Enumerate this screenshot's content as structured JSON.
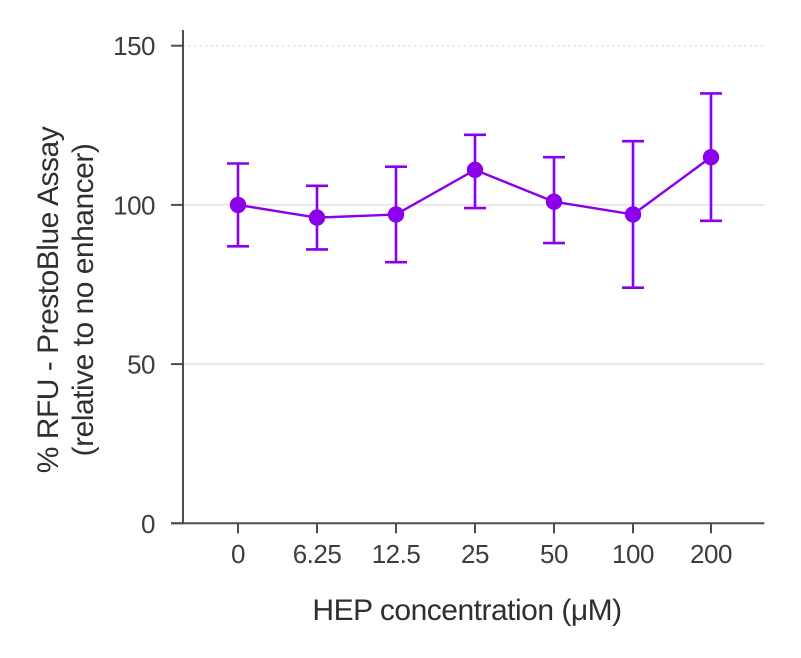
{
  "figure": {
    "background": "#ffffff",
    "accent_color": "#8B00EA",
    "axis_color": "#4d4d4d",
    "grid_color": "#e9e9e9",
    "tick_text_color": "#3d3d3d",
    "title_text_color": "#2f2f2f"
  },
  "chart_data": {
    "type": "line",
    "title": "",
    "xlabel": "HEP concentration (μM)",
    "ylabel_line1": "% RFU - PrestoBlue Assay",
    "ylabel_line2": "(relative to no enhancer)",
    "categories": [
      "0",
      "6.25",
      "12.5",
      "25",
      "50",
      "100",
      "200"
    ],
    "series": [
      {
        "name": "% RFU relative to no enhancer",
        "color": "#8B00EA",
        "values": [
          100,
          96,
          97,
          111,
          101,
          97,
          115
        ],
        "error_hi": [
          113,
          106,
          112,
          122,
          115,
          120,
          135
        ],
        "error_lo": [
          87,
          86,
          82,
          99,
          88,
          74,
          95
        ]
      }
    ],
    "y_ticks": [
      0,
      50,
      100,
      150
    ],
    "ylim": [
      0,
      155
    ],
    "grid": "horizontal",
    "gridline_dotted_at": 150,
    "legend": "none",
    "marker": "circle",
    "error_bars": true
  }
}
